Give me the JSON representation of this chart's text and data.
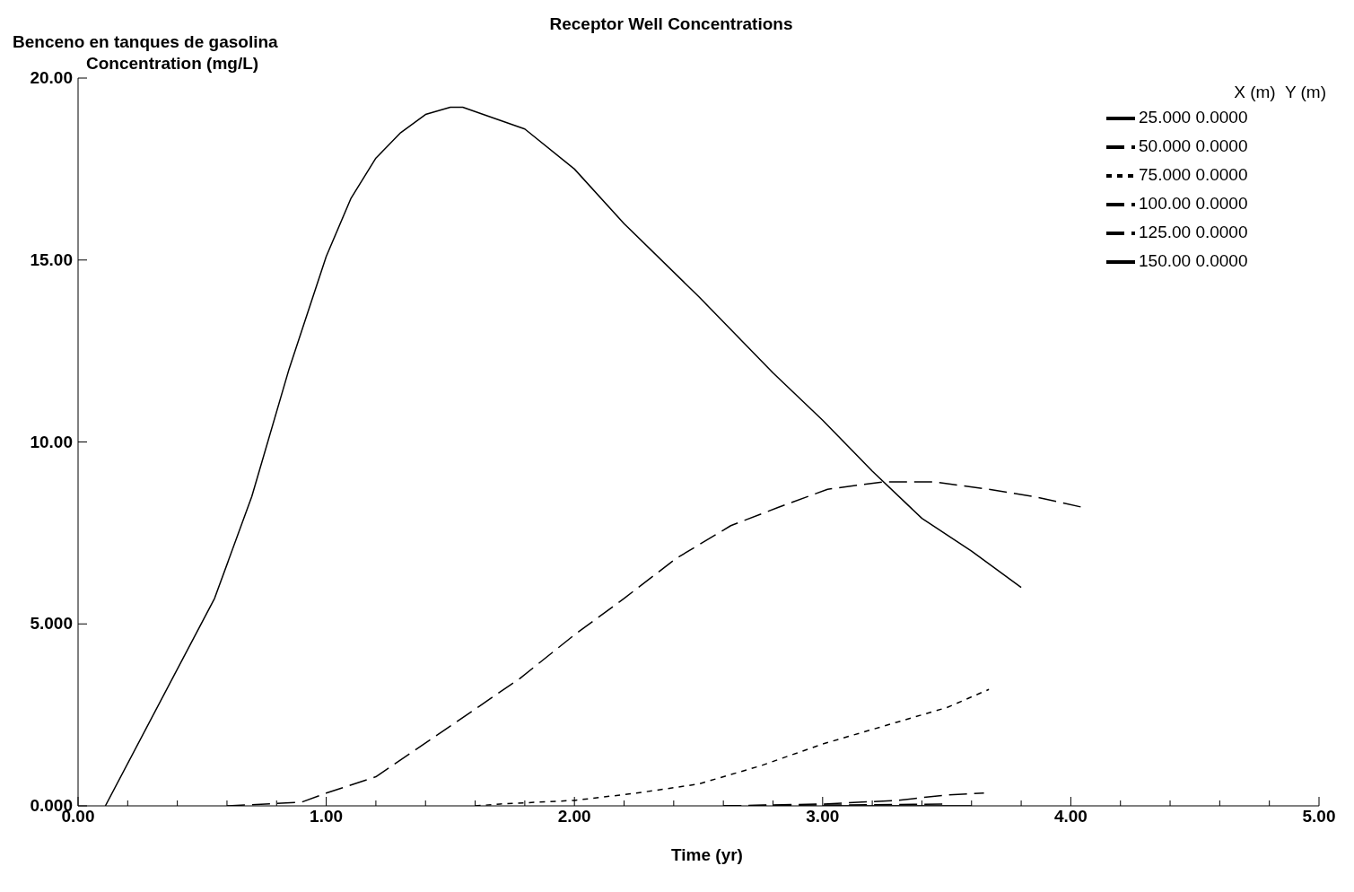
{
  "chart_data": {
    "type": "line",
    "title": "Receptor Well Concentrations",
    "subtitle": "Benceno en tanques de gasolina",
    "ylabel": "Concentration (mg/L)",
    "xlabel": "Time (yr)",
    "legend_title": "X (m)  Y (m)",
    "legend": "top right",
    "grid": false,
    "marker": "none",
    "xlim": [
      0,
      5
    ],
    "ylim": [
      0,
      20
    ],
    "xticks": [
      {
        "value": 0,
        "label": "0.00"
      },
      {
        "value": 0.2,
        "label": null
      },
      {
        "value": 0.4,
        "label": null
      },
      {
        "value": 0.6,
        "label": null
      },
      {
        "value": 0.8,
        "label": null
      },
      {
        "value": 1,
        "label": "1.00"
      },
      {
        "value": 1.2,
        "label": null
      },
      {
        "value": 1.4,
        "label": null
      },
      {
        "value": 1.6,
        "label": null
      },
      {
        "value": 1.8,
        "label": null
      },
      {
        "value": 2,
        "label": "2.00"
      },
      {
        "value": 2.2,
        "label": null
      },
      {
        "value": 2.4,
        "label": null
      },
      {
        "value": 2.6,
        "label": null
      },
      {
        "value": 2.8,
        "label": null
      },
      {
        "value": 3,
        "label": "3.00"
      },
      {
        "value": 3.2,
        "label": null
      },
      {
        "value": 3.4,
        "label": null
      },
      {
        "value": 3.6,
        "label": null
      },
      {
        "value": 3.8,
        "label": null
      },
      {
        "value": 4,
        "label": "4.00"
      },
      {
        "value": 4.2,
        "label": null
      },
      {
        "value": 4.4,
        "label": null
      },
      {
        "value": 4.6,
        "label": null
      },
      {
        "value": 4.8,
        "label": null
      },
      {
        "value": 5,
        "label": "5.00"
      }
    ],
    "yticks": [
      {
        "value": 0,
        "label": "0.000"
      },
      {
        "value": 5,
        "label": "5.000"
      },
      {
        "value": 10,
        "label": "10.00"
      },
      {
        "value": 15,
        "label": "15.00"
      },
      {
        "value": 20,
        "label": "20.00"
      }
    ],
    "series": [
      {
        "name": "25.000 0.0000",
        "color": "#000000",
        "line_style": "solid",
        "x": [
          0.11,
          0.55,
          0.7,
          0.85,
          1.0,
          1.1,
          1.2,
          1.3,
          1.4,
          1.5,
          1.55,
          1.8,
          2.0,
          2.2,
          2.5,
          2.8,
          3.0,
          3.2,
          3.4,
          3.6,
          3.8
        ],
        "values": [
          0,
          5.7,
          8.5,
          12,
          15.1,
          16.7,
          17.8,
          18.5,
          19.0,
          19.2,
          19.2,
          18.6,
          17.5,
          16.0,
          14.0,
          11.9,
          10.6,
          9.2,
          7.9,
          7.0,
          6.0
        ]
      },
      {
        "name": "50.000 0.0000",
        "color": "#000000",
        "line_style": "dashed",
        "x": [
          0.6,
          0.9,
          1.0,
          1.2,
          1.48,
          1.78,
          2.0,
          2.2,
          2.41,
          2.63,
          2.82,
          3.02,
          3.24,
          3.45,
          3.67,
          3.85,
          4.05
        ],
        "values": [
          0,
          0.1,
          0.35,
          0.8,
          2.1,
          3.5,
          4.7,
          5.7,
          6.8,
          7.7,
          8.2,
          8.7,
          8.9,
          8.9,
          8.7,
          8.5,
          8.2
        ]
      },
      {
        "name": "75.000 0.0000",
        "color": "#000000",
        "line_style": "dotted",
        "x": [
          1.6,
          1.7,
          2.0,
          2.25,
          2.5,
          2.75,
          3.0,
          3.3,
          3.5,
          3.67
        ],
        "values": [
          0,
          0.05,
          0.15,
          0.35,
          0.6,
          1.1,
          1.7,
          2.3,
          2.7,
          3.2
        ]
      },
      {
        "name": "100.00 0.0000",
        "color": "#000000",
        "line_style": "dashed",
        "x": [
          2.6,
          3.0,
          3.3,
          3.5,
          3.65
        ],
        "values": [
          0,
          0.05,
          0.15,
          0.3,
          0.35
        ]
      },
      {
        "name": "125.00 0.0000",
        "color": "#000000",
        "line_style": "dashed",
        "x": [
          2.6,
          2.9,
          3.2,
          3.5
        ],
        "values": [
          0,
          0.02,
          0.03,
          0.05
        ]
      },
      {
        "name": "150.00 0.0000",
        "color": "#000000",
        "line_style": "solid",
        "x": [
          3.0,
          3.3,
          3.6
        ],
        "values": [
          0,
          0,
          0
        ]
      }
    ]
  }
}
